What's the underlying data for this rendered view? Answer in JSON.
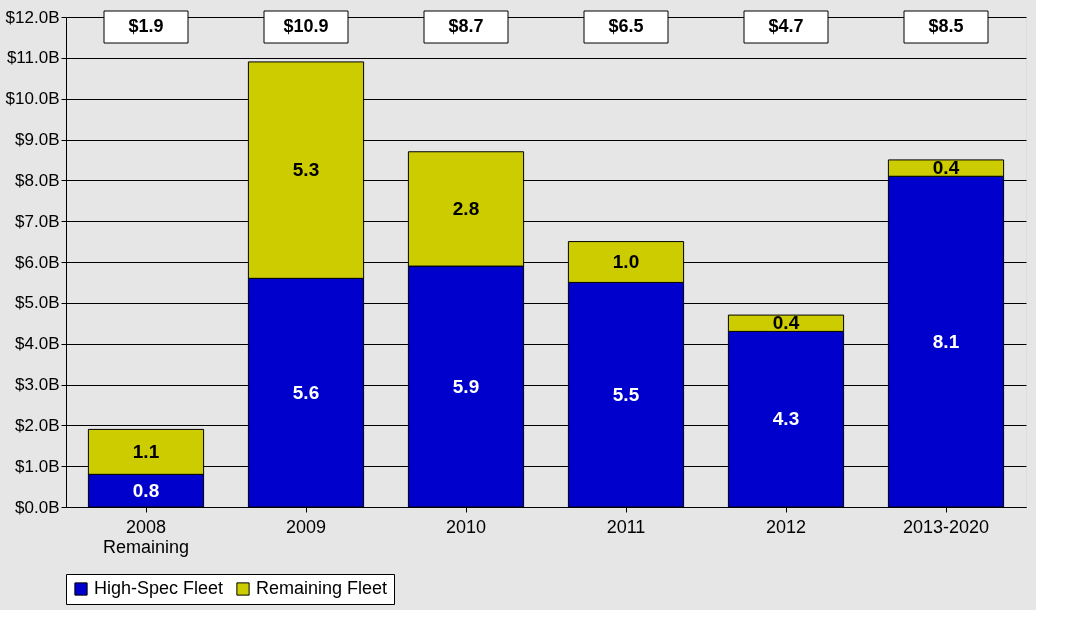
{
  "chart_data": {
    "type": "bar",
    "stacked": true,
    "categories": [
      "2008\nRemaining",
      "2009",
      "2010",
      "2011",
      "2012",
      "2013-2020"
    ],
    "series": [
      {
        "name": "High-Spec Fleet",
        "color": "#0000cc",
        "values": [
          0.8,
          5.6,
          5.9,
          5.5,
          4.3,
          8.1
        ],
        "value_labels": [
          "0.8",
          "5.6",
          "5.9",
          "5.5",
          "4.3",
          "8.1"
        ]
      },
      {
        "name": "Remaining Fleet",
        "color": "#cccc00",
        "values": [
          1.1,
          5.3,
          2.8,
          1.0,
          0.4,
          0.4
        ],
        "value_labels": [
          "1.1",
          "5.3",
          "2.8",
          "1.0",
          "0.4",
          "0.4"
        ]
      }
    ],
    "annotations": [
      "$1.9",
      "$10.9",
      "$8.7",
      "$6.5",
      "$4.7",
      "$8.5"
    ],
    "ylim": [
      0,
      12
    ],
    "yticks": [
      {
        "value": 0,
        "label": "$0.0B"
      },
      {
        "value": 1,
        "label": "$1.0B"
      },
      {
        "value": 2,
        "label": "$2.0B"
      },
      {
        "value": 3,
        "label": "$3.0B"
      },
      {
        "value": 4,
        "label": "$4.0B"
      },
      {
        "value": 5,
        "label": "$5.0B"
      },
      {
        "value": 6,
        "label": "$6.0B"
      },
      {
        "value": 7,
        "label": "$7.0B"
      },
      {
        "value": 8,
        "label": "$8.0B"
      },
      {
        "value": 9,
        "label": "$9.0B"
      },
      {
        "value": 10,
        "label": "$10.0B"
      },
      {
        "value": 11,
        "label": "$11.0B"
      },
      {
        "value": 12,
        "label": "$12.0B"
      }
    ],
    "grid": "y",
    "legend": "bottom"
  }
}
